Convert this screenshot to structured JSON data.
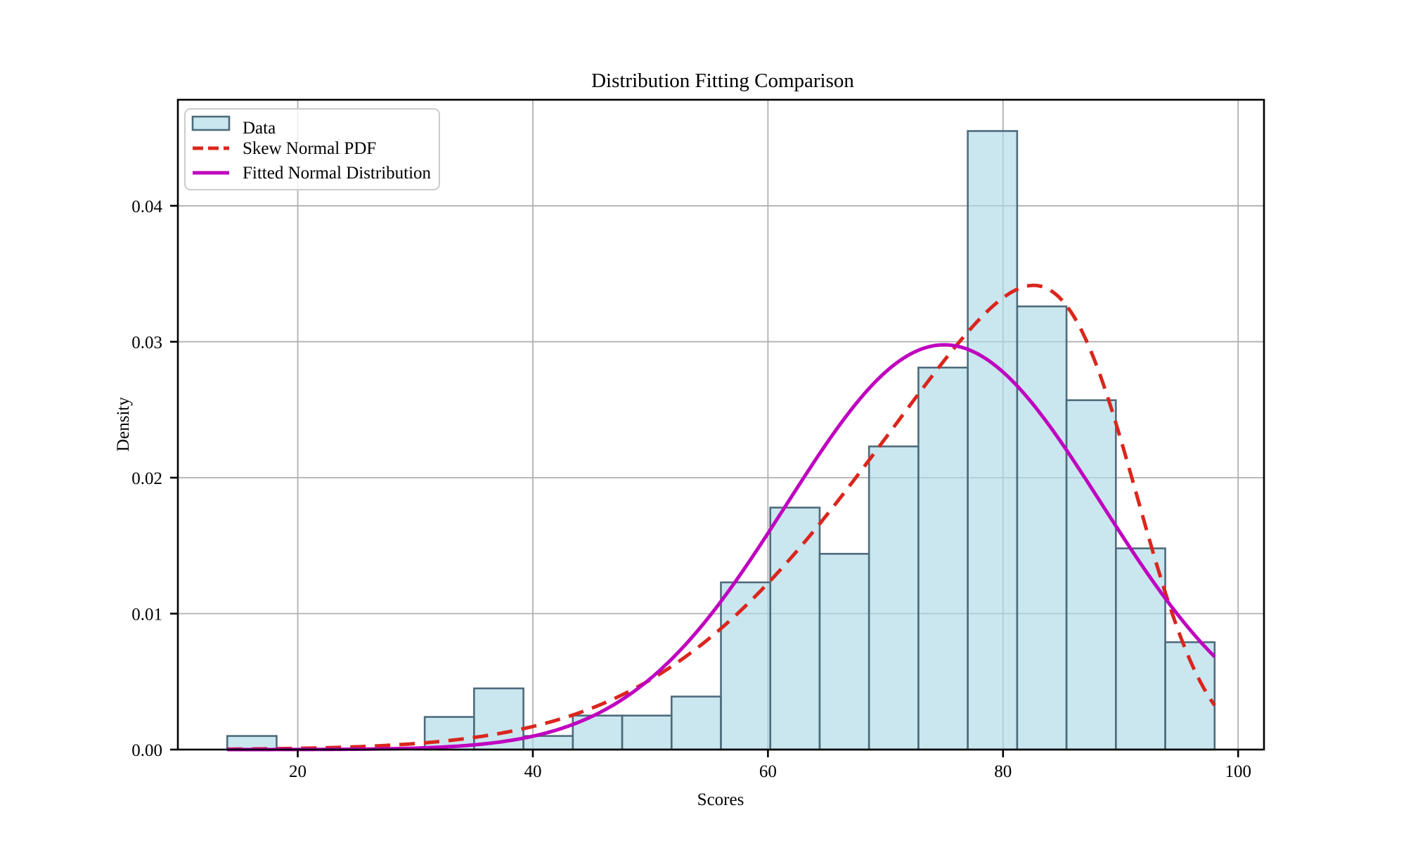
{
  "chart_data": {
    "type": "histogram+line",
    "title": "Distribution Fitting Comparison",
    "xlabel": "Scores",
    "ylabel": "Density",
    "xlim": [
      9.8,
      102.2
    ],
    "ylim": [
      0,
      0.0478
    ],
    "xtick_labels": [
      "20",
      "40",
      "60",
      "80",
      "100"
    ],
    "xtick_values": [
      20,
      40,
      60,
      80,
      100
    ],
    "ytick_labels": [
      "0.00",
      "0.01",
      "0.02",
      "0.03",
      "0.04"
    ],
    "ytick_values": [
      0,
      0.01,
      0.02,
      0.03,
      0.04
    ],
    "grid": true,
    "legend_position": "upper left",
    "histogram": {
      "label": "Data",
      "bin_edges": [
        14.0,
        18.2,
        22.4,
        26.6,
        30.8,
        35.0,
        39.2,
        43.4,
        47.6,
        51.8,
        56.0,
        60.2,
        64.4,
        68.6,
        72.8,
        77.0,
        81.2,
        85.4,
        89.6,
        93.8,
        98.0
      ],
      "densities": [
        0.001,
        0,
        0,
        0,
        0.0024,
        0.0045,
        0.001,
        0.0025,
        0.0025,
        0.0039,
        0.0123,
        0.0178,
        0.0144,
        0.0223,
        0.0281,
        0.0455,
        0.0326,
        0.0257,
        0.0148,
        0.0079
      ]
    },
    "curves": [
      {
        "label": "Skew Normal PDF",
        "model": "skew_normal",
        "alpha": -4,
        "loc": 91.1,
        "scale": 20.4,
        "x_start": 14,
        "x_end": 98,
        "peak_x": 82.5,
        "peak_density": 0.0342,
        "end_density": 0.003,
        "style": "dashed"
      },
      {
        "label": "Fitted Normal Distribution",
        "model": "normal",
        "mean": 75.0,
        "std": 13.4,
        "x_start": 14,
        "x_end": 98,
        "peak_x": 75.0,
        "peak_density": 0.0298,
        "end_density": 0.0068,
        "style": "solid"
      }
    ]
  },
  "colors": {
    "histogram_fill": "#add8e6",
    "histogram_fill_opacity": 0.65,
    "histogram_edge": "#4e6b7b",
    "skew_curve": "#da261d",
    "normal_curve": "#bf00bf",
    "grid": "#b0b0b0",
    "axes": "#000000",
    "text": "#000000",
    "legend_border": "#cccccc",
    "background": "#ffffff"
  }
}
